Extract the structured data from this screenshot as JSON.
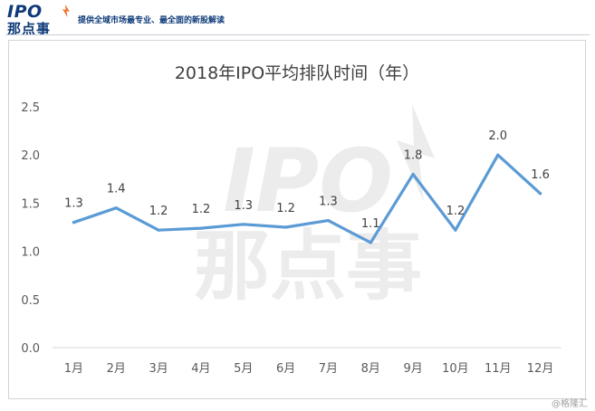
{
  "header": {
    "logo_ipo": "IPO",
    "logo_name": "那点事",
    "slogan": "提供全域市场最专业、最全面的新股解读"
  },
  "watermark": {
    "ipo": "IPO",
    "name": "那点事"
  },
  "credit": "@格隆汇",
  "colors": {
    "line": "#5b9bd5",
    "brand": "#0d3a78",
    "axis_text": "#595959",
    "watermark": "#ececec"
  },
  "chart_data": {
    "type": "line",
    "title": "2018年IPO平均排队时间（年）",
    "categories": [
      "1月",
      "2月",
      "3月",
      "4月",
      "5月",
      "6月",
      "7月",
      "8月",
      "9月",
      "10月",
      "11月",
      "12月"
    ],
    "values": [
      1.3,
      1.45,
      1.22,
      1.24,
      1.28,
      1.25,
      1.32,
      1.09,
      1.8,
      1.22,
      2.0,
      1.6
    ],
    "data_labels": [
      "1.3",
      "1.4",
      "1.2",
      "1.2",
      "1.3",
      "1.2",
      "1.3",
      "1.1",
      "1.8",
      "1.2",
      "2.0",
      "1.6"
    ],
    "ylim": [
      0,
      2.5
    ],
    "yticks": [
      "0.0",
      "0.5",
      "1.0",
      "1.5",
      "2.0",
      "2.5"
    ],
    "grid": false,
    "legend": "none"
  }
}
